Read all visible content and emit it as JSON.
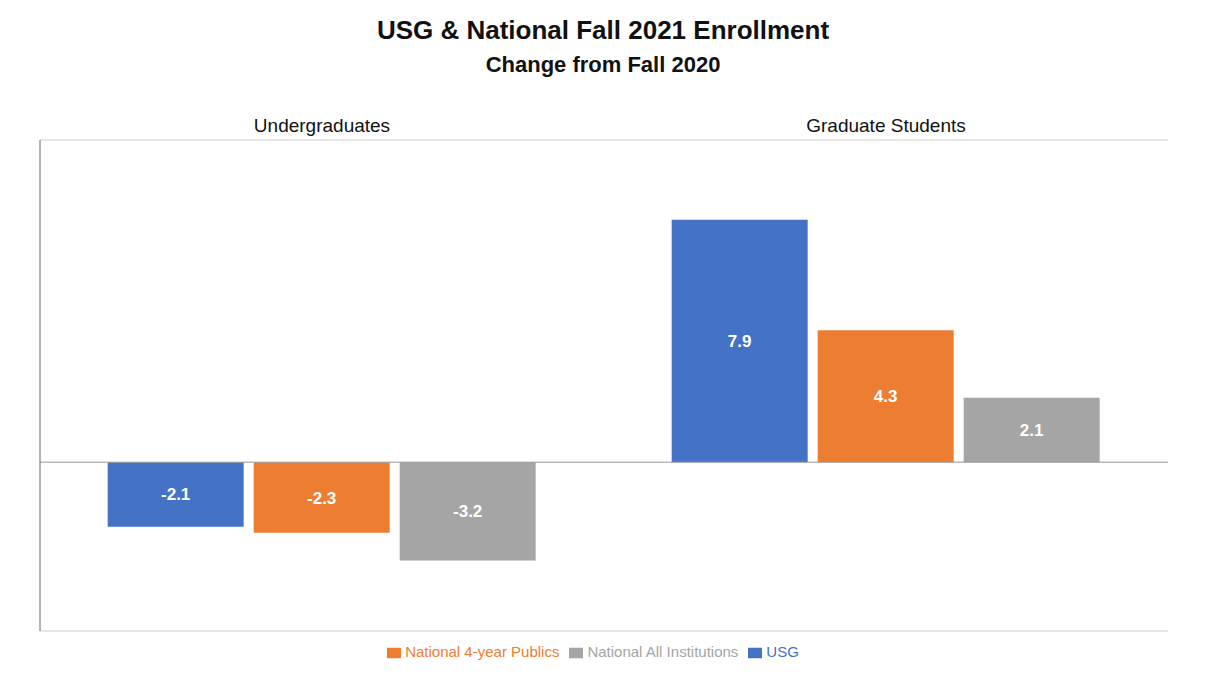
{
  "chart_data": {
    "type": "bar",
    "title": "USG & National Fall 2021 Enrollment",
    "subtitle": "Change from Fall 2020",
    "categories": [
      "Undergraduates",
      "Graduate Students"
    ],
    "series": [
      {
        "name": "USG",
        "color": "#4472C4",
        "values": [
          -2.1,
          7.9
        ]
      },
      {
        "name": "National 4-year Publics",
        "color": "#ED7D31",
        "values": [
          -2.3,
          4.3
        ]
      },
      {
        "name": "National All Institutions",
        "color": "#A5A5A5",
        "values": [
          -3.2,
          2.1
        ]
      }
    ],
    "ylim": [
      -5.5,
      10.5
    ],
    "yticks": [
      -5,
      -2.5,
      0,
      2.5,
      5,
      7.5,
      10
    ],
    "grid": true,
    "data_labels": true,
    "tick_labels": "x",
    "legend": "bottom"
  }
}
